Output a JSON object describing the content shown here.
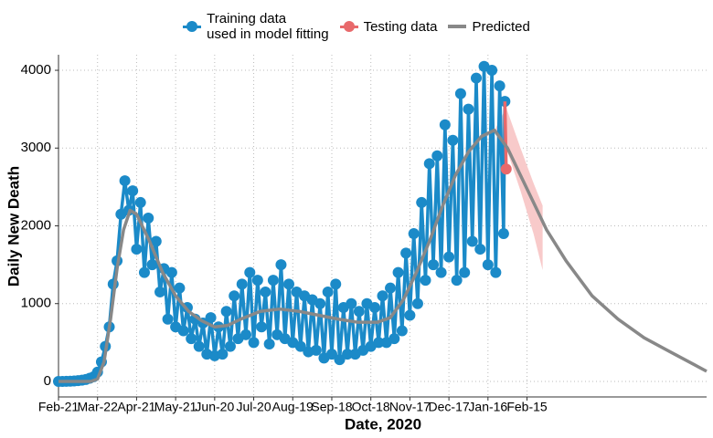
{
  "chart_data": {
    "type": "line",
    "x_label": "Date, 2020",
    "y_label": "Daily New Death",
    "xlim": [
      0,
      498
    ],
    "ylim": [
      -200,
      4200
    ],
    "xticks": [
      {
        "value": 0,
        "label": "Feb-21"
      },
      {
        "value": 30,
        "label": "Mar-22"
      },
      {
        "value": 60,
        "label": "Apr-21"
      },
      {
        "value": 90,
        "label": "May-21"
      },
      {
        "value": 120,
        "label": "Jun-20"
      },
      {
        "value": 150,
        "label": "Jul-20"
      },
      {
        "value": 180,
        "label": "Aug-19"
      },
      {
        "value": 210,
        "label": "Sep-18"
      },
      {
        "value": 240,
        "label": "Oct-18"
      },
      {
        "value": 270,
        "label": "Nov-17"
      },
      {
        "value": 300,
        "label": "Dec-17"
      },
      {
        "value": 330,
        "label": "Jan-16"
      },
      {
        "value": 360,
        "label": "Feb-15"
      }
    ],
    "yticks": [
      0,
      1000,
      2000,
      3000,
      4000
    ],
    "grid": true,
    "legend": "top",
    "series": [
      {
        "name": "Training data\nused in model fitting",
        "color": "#1b8ac8",
        "x": [
          0,
          3,
          6,
          9,
          12,
          15,
          18,
          21,
          24,
          27,
          30,
          33,
          36,
          39,
          42,
          45,
          48,
          51,
          54,
          57,
          60,
          63,
          66,
          69,
          72,
          75,
          78,
          81,
          84,
          87,
          90,
          93,
          96,
          99,
          102,
          105,
          108,
          111,
          114,
          117,
          120,
          123,
          126,
          129,
          132,
          135,
          138,
          141,
          144,
          147,
          150,
          153,
          156,
          159,
          162,
          165,
          168,
          171,
          174,
          177,
          180,
          183,
          186,
          189,
          192,
          195,
          198,
          201,
          204,
          207,
          210,
          213,
          216,
          219,
          222,
          225,
          228,
          231,
          234,
          237,
          240,
          243,
          246,
          249,
          252,
          255,
          258,
          261,
          264,
          267,
          270,
          273,
          276,
          279,
          282,
          285,
          288,
          291,
          294,
          297,
          300,
          303,
          306,
          309,
          312,
          315,
          318,
          321,
          324,
          327,
          330,
          333,
          336,
          339,
          342,
          343
        ],
        "values": [
          0,
          0,
          1,
          2,
          5,
          10,
          15,
          25,
          40,
          60,
          120,
          250,
          450,
          700,
          1250,
          1550,
          2150,
          2580,
          2200,
          2450,
          1700,
          2300,
          1400,
          2100,
          1500,
          1800,
          1150,
          1450,
          800,
          1400,
          700,
          1200,
          650,
          950,
          550,
          800,
          450,
          750,
          350,
          820,
          330,
          700,
          350,
          900,
          450,
          1100,
          550,
          1250,
          600,
          1400,
          500,
          1300,
          700,
          1150,
          480,
          1300,
          600,
          1500,
          550,
          1250,
          500,
          1150,
          450,
          1100,
          380,
          1050,
          400,
          1000,
          300,
          1150,
          350,
          1250,
          280,
          950,
          350,
          1000,
          350,
          900,
          400,
          1000,
          450,
          950,
          500,
          1100,
          500,
          1200,
          550,
          1400,
          650,
          1650,
          850,
          1900,
          1000,
          2300,
          1300,
          2800,
          1500,
          2900,
          1400,
          3300,
          1600,
          3100,
          1300,
          3700,
          1400,
          3500,
          1800,
          3900,
          1700,
          4050,
          1500,
          4000,
          1400,
          3800,
          1900,
          3600
        ]
      },
      {
        "name": "Testing data",
        "color": "#e8696b",
        "x": [
          344
        ],
        "values": [
          2730
        ]
      },
      {
        "name": "Predicted",
        "color": "#888888",
        "x": [
          0,
          25,
          30,
          35,
          40,
          45,
          50,
          55,
          60,
          70,
          80,
          90,
          100,
          110,
          120,
          130,
          140,
          155,
          170,
          185,
          200,
          215,
          230,
          245,
          255,
          265,
          275,
          285,
          295,
          305,
          315,
          325,
          335,
          345,
          355,
          365,
          375,
          390,
          410,
          430,
          450,
          470,
          498
        ],
        "values": [
          0,
          0,
          30,
          250,
          800,
          1450,
          1950,
          2200,
          2150,
          1800,
          1400,
          1100,
          900,
          780,
          700,
          720,
          800,
          900,
          930,
          900,
          850,
          800,
          760,
          760,
          820,
          1050,
          1400,
          1800,
          2250,
          2650,
          2950,
          3150,
          3230,
          3000,
          2650,
          2300,
          1950,
          1550,
          1100,
          800,
          560,
          380,
          130
        ]
      }
    ],
    "band": {
      "color": "#f8caca",
      "x": [
        336,
        344,
        355,
        365,
        372
      ],
      "lower": [
        3200,
        3000,
        2450,
        1900,
        1430
      ],
      "upper": [
        3260,
        3520,
        3000,
        2550,
        2260
      ]
    }
  }
}
